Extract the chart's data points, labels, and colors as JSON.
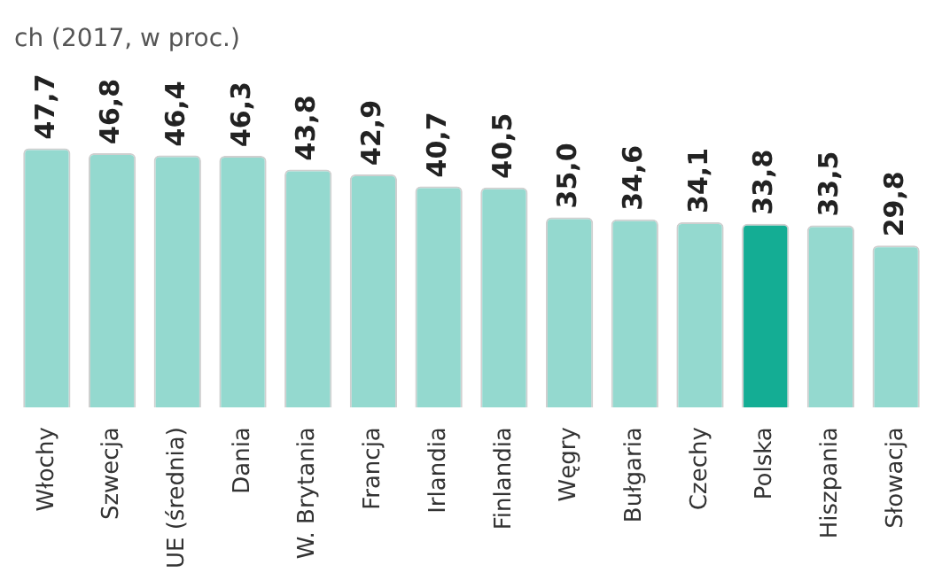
{
  "chart_data": {
    "type": "bar",
    "title": "ch (2017, w proc.)",
    "categories": [
      "Włochy",
      "Szwecja",
      "UE (średnia)",
      "Dania",
      "W. Brytania",
      "Francja",
      "Irlandia",
      "Finlandia",
      "Węgry",
      "Bułgaria",
      "Czechy",
      "Polska",
      "Hiszpania",
      "Słowacja"
    ],
    "values": [
      47.7,
      46.8,
      46.4,
      46.3,
      43.8,
      42.9,
      40.7,
      40.5,
      35.0,
      34.6,
      34.1,
      33.8,
      33.5,
      29.8
    ],
    "colors": [
      "#94d9cf",
      "#94d9cf",
      "#94d9cf",
      "#94d9cf",
      "#94d9cf",
      "#94d9cf",
      "#94d9cf",
      "#94d9cf",
      "#94d9cf",
      "#94d9cf",
      "#94d9cf",
      "#14ad94",
      "#94d9cf",
      "#94d9cf"
    ],
    "value_labels": [
      "47,7",
      "46,8",
      "46,4",
      "46,3",
      "43,8",
      "42,9",
      "40,7",
      "40,5",
      "35,0",
      "34,6",
      "34,1",
      "33,8",
      "33,5",
      "29,8"
    ],
    "ylim": [
      0,
      48
    ],
    "grid": false,
    "legend": false
  }
}
